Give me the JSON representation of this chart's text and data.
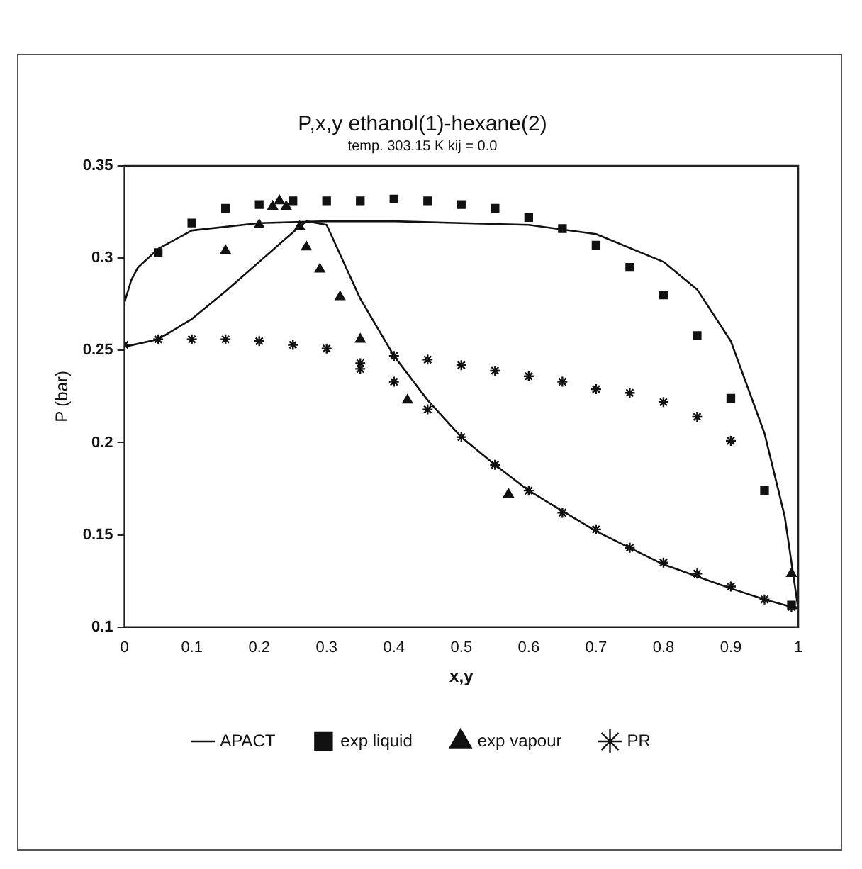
{
  "chart_data": {
    "type": "scatter",
    "title": "P,x,y ethanol(1)-hexane(2)",
    "subtitle": "temp. 303.15 K kij = 0.0",
    "xlabel": "x,y",
    "ylabel": "P (bar)",
    "xlim": [
      0,
      1
    ],
    "xticks": [
      0,
      0.1,
      0.2,
      0.3,
      0.4,
      0.5,
      0.6,
      0.7,
      0.8,
      0.9,
      1
    ],
    "ylim": [
      0.1,
      0.35
    ],
    "yticks": [
      0.1,
      0.15,
      0.2,
      0.25,
      0.3,
      0.35
    ],
    "grid": false,
    "legend": "bottom",
    "series": [
      {
        "name": "APACT",
        "type": "line",
        "color": "#111111",
        "marker": "none",
        "line_style": "solid",
        "x": [
          0,
          0.01,
          0.02,
          0.05,
          0.1,
          0.2,
          0.3,
          0.4,
          0.5,
          0.6,
          0.7,
          0.8,
          0.85,
          0.9,
          0.95,
          0.98,
          1
        ],
        "values": [
          0.276,
          0.288,
          0.295,
          0.305,
          0.315,
          0.319,
          0.32,
          0.32,
          0.319,
          0.318,
          0.313,
          0.298,
          0.283,
          0.255,
          0.205,
          0.16,
          0.11
        ]
      },
      {
        "type": "line",
        "color": "#111111",
        "marker": "none",
        "line_style": "solid",
        "x": [
          0,
          0.05,
          0.1,
          0.15,
          0.2,
          0.25,
          0.27,
          0.3,
          0.35,
          0.4,
          0.45,
          0.5,
          0.55,
          0.6,
          0.7,
          0.8,
          0.9,
          0.95,
          1
        ],
        "values": [
          0.252,
          0.256,
          0.267,
          0.282,
          0.298,
          0.314,
          0.32,
          0.318,
          0.278,
          0.247,
          0.223,
          0.203,
          0.188,
          0.174,
          0.152,
          0.134,
          0.121,
          0.115,
          0.11
        ]
      },
      {
        "name": "exp liquid",
        "color": "#111111",
        "marker": "square",
        "x": [
          0.05,
          0.1,
          0.15,
          0.2,
          0.25,
          0.3,
          0.35,
          0.4,
          0.45,
          0.5,
          0.55,
          0.6,
          0.65,
          0.7,
          0.75,
          0.8,
          0.85,
          0.9,
          0.95,
          0.99
        ],
        "values": [
          0.303,
          0.319,
          0.327,
          0.329,
          0.331,
          0.331,
          0.331,
          0.332,
          0.331,
          0.329,
          0.327,
          0.322,
          0.316,
          0.307,
          0.295,
          0.28,
          0.258,
          0.224,
          0.174,
          0.112
        ]
      },
      {
        "name": "exp vapour",
        "color": "#111111",
        "marker": "triangle",
        "x": [
          0.15,
          0.2,
          0.22,
          0.23,
          0.24,
          0.26,
          0.27,
          0.29,
          0.32,
          0.35,
          0.42,
          0.57,
          0.99
        ],
        "values": [
          0.304,
          0.318,
          0.328,
          0.331,
          0.328,
          0.317,
          0.306,
          0.294,
          0.279,
          0.256,
          0.223,
          0.172,
          0.129
        ]
      },
      {
        "name": "PR",
        "color": "#111111",
        "marker": "cross",
        "x": [
          0,
          0.05,
          0.1,
          0.15,
          0.2,
          0.25,
          0.3,
          0.35,
          0.4,
          0.45,
          0.5,
          0.55,
          0.6,
          0.65,
          0.7,
          0.75,
          0.8,
          0.85,
          0.9,
          0.35,
          0.4,
          0.45,
          0.5,
          0.55,
          0.6,
          0.65,
          0.7,
          0.75,
          0.8,
          0.85,
          0.9,
          0.95,
          0.99
        ],
        "values": [
          0.253,
          0.256,
          0.256,
          0.256,
          0.255,
          0.253,
          0.251,
          0.243,
          0.247,
          0.245,
          0.242,
          0.239,
          0.236,
          0.233,
          0.229,
          0.227,
          0.222,
          0.214,
          0.201,
          0.24,
          0.233,
          0.218,
          0.203,
          0.188,
          0.174,
          0.162,
          0.153,
          0.143,
          0.135,
          0.129,
          0.122,
          0.115,
          0.111
        ]
      }
    ]
  }
}
